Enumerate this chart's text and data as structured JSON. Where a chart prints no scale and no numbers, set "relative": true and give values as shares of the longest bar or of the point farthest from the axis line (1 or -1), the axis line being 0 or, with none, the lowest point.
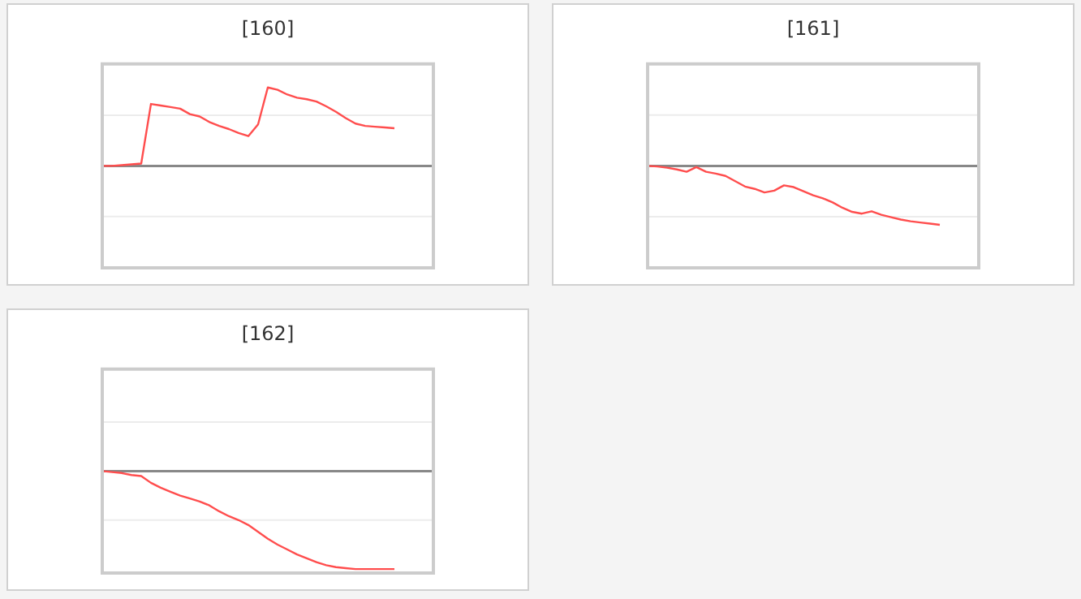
{
  "chart_data": [
    {
      "type": "line",
      "title": "[160]",
      "relative": true,
      "ref_lines": [
        {
          "axis": "y",
          "value": 0.646,
          "color": "#ececec"
        },
        {
          "axis": "y",
          "value": -0.646,
          "color": "#ececec"
        }
      ],
      "categories": [
        null,
        null,
        null,
        null,
        null,
        null,
        null,
        null,
        null,
        null,
        null,
        null,
        null,
        null,
        null,
        null,
        null,
        null,
        null,
        null,
        null,
        null,
        null,
        null,
        null,
        null,
        null,
        null,
        null,
        null,
        null,
        null,
        null,
        null,
        null
      ],
      "series": [
        {
          "color": "#ff4d4d",
          "values": [
            0,
            0,
            0.01,
            0.02,
            0.03,
            0.79,
            0.77,
            0.75,
            0.73,
            0.66,
            0.63,
            0.56,
            0.51,
            0.47,
            0.42,
            0.38,
            0.53,
            1,
            0.97,
            0.91,
            0.87,
            0.85,
            0.82,
            0.76,
            0.69,
            0.61,
            0.54,
            0.51,
            0.5,
            0.49,
            0.48,
            null,
            null,
            null,
            null
          ]
        }
      ]
    },
    {
      "type": "line",
      "title": "[161]",
      "relative": true,
      "ref_lines": [
        {
          "axis": "y",
          "value": 0.862,
          "color": "#ececec"
        },
        {
          "axis": "y",
          "value": -0.862,
          "color": "#ececec"
        }
      ],
      "categories": [
        null,
        null,
        null,
        null,
        null,
        null,
        null,
        null,
        null,
        null,
        null,
        null,
        null,
        null,
        null,
        null,
        null,
        null,
        null,
        null,
        null,
        null,
        null,
        null,
        null,
        null,
        null,
        null,
        null,
        null,
        null,
        null,
        null,
        null,
        null
      ],
      "series": [
        {
          "color": "#ff4d4d",
          "values": [
            0,
            -0.01,
            -0.03,
            -0.06,
            -0.1,
            -0.02,
            -0.1,
            -0.13,
            -0.17,
            -0.26,
            -0.35,
            -0.39,
            -0.45,
            -0.42,
            -0.33,
            -0.36,
            -0.43,
            -0.5,
            -0.55,
            -0.62,
            -0.71,
            -0.78,
            -0.81,
            -0.77,
            -0.83,
            -0.87,
            -0.91,
            -0.94,
            -0.96,
            -0.98,
            -1,
            null,
            null,
            null,
            null
          ]
        }
      ]
    },
    {
      "type": "line",
      "title": "[162]",
      "relative": true,
      "ref_lines": [
        {
          "axis": "y",
          "value": 0.5,
          "color": "#ececec"
        },
        {
          "axis": "y",
          "value": -0.5,
          "color": "#ececec"
        }
      ],
      "categories": [
        null,
        null,
        null,
        null,
        null,
        null,
        null,
        null,
        null,
        null,
        null,
        null,
        null,
        null,
        null,
        null,
        null,
        null,
        null,
        null,
        null,
        null,
        null,
        null,
        null,
        null,
        null,
        null,
        null,
        null,
        null,
        null,
        null,
        null,
        null
      ],
      "series": [
        {
          "color": "#ff4d4d",
          "values": [
            0,
            -0.01,
            -0.02,
            -0.04,
            -0.05,
            -0.12,
            -0.17,
            -0.21,
            -0.25,
            -0.28,
            -0.31,
            -0.35,
            -0.41,
            -0.46,
            -0.5,
            -0.55,
            -0.62,
            -0.69,
            -0.75,
            -0.8,
            -0.85,
            -0.89,
            -0.93,
            -0.96,
            -0.98,
            -0.99,
            -1,
            -1,
            -1,
            -1,
            -1,
            null,
            null,
            null,
            null
          ]
        }
      ]
    }
  ]
}
